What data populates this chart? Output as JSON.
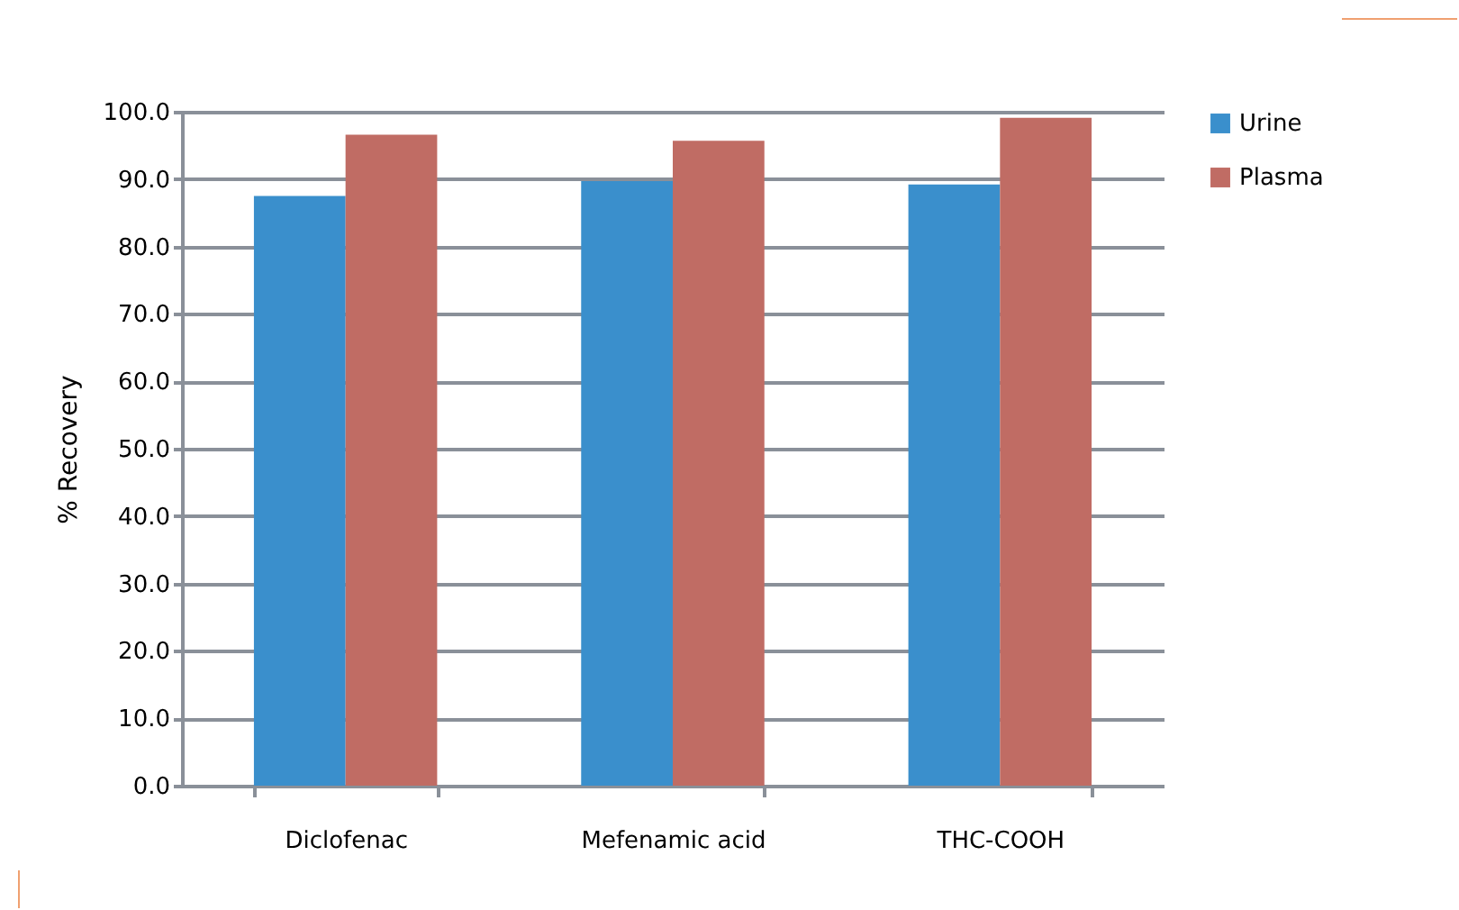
{
  "chart_data": {
    "type": "bar",
    "ylabel": "% Recovery",
    "categories": [
      "Diclofenac",
      "Mefenamic acid",
      "THC-COOH"
    ],
    "series": [
      {
        "name": "Urine",
        "color": "#3a8fcc",
        "values": [
          87.5,
          89.7,
          89.2
        ]
      },
      {
        "name": "Plasma",
        "color": "#c06c64",
        "values": [
          96.6,
          95.7,
          99.1
        ]
      }
    ],
    "ylim": [
      0,
      100
    ],
    "yticks": [
      {
        "value": 0,
        "label": "0.0"
      },
      {
        "value": 10,
        "label": "10.0"
      },
      {
        "value": 20,
        "label": "20.0"
      },
      {
        "value": 30,
        "label": "30.0"
      },
      {
        "value": 40,
        "label": "40.0"
      },
      {
        "value": 50,
        "label": "50.0"
      },
      {
        "value": 60,
        "label": "60.0"
      },
      {
        "value": 70,
        "label": "70.0"
      },
      {
        "value": 80,
        "label": "80.0"
      },
      {
        "value": 90,
        "label": "90.0"
      },
      {
        "value": 100,
        "label": "100.0"
      }
    ],
    "grid": "y",
    "legend": "right"
  }
}
